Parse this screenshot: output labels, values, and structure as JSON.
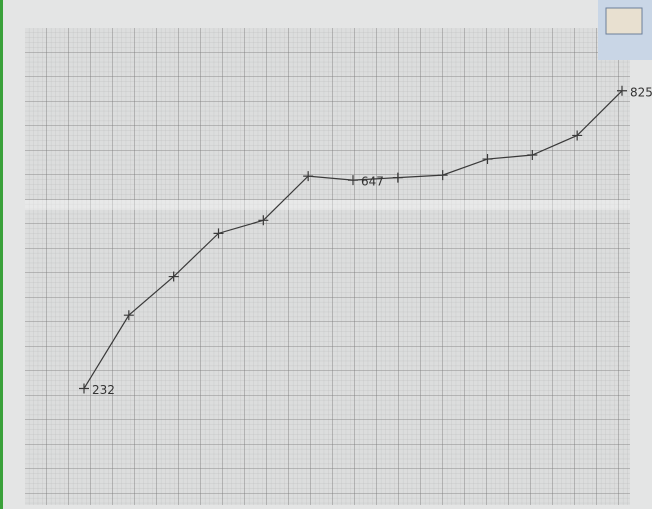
{
  "chart_data": {
    "type": "line",
    "categories": [
      null,
      null,
      null,
      null,
      null,
      null,
      null,
      null,
      null,
      null,
      null,
      null,
      null
    ],
    "values": [
      232,
      378,
      455,
      541,
      567,
      655,
      647,
      652,
      657,
      689,
      697,
      736,
      825
    ],
    "labeled_points": [
      0,
      6,
      12
    ],
    "color": "#3a3a3a",
    "ylim": [
      0,
      950
    ],
    "grid": true
  }
}
